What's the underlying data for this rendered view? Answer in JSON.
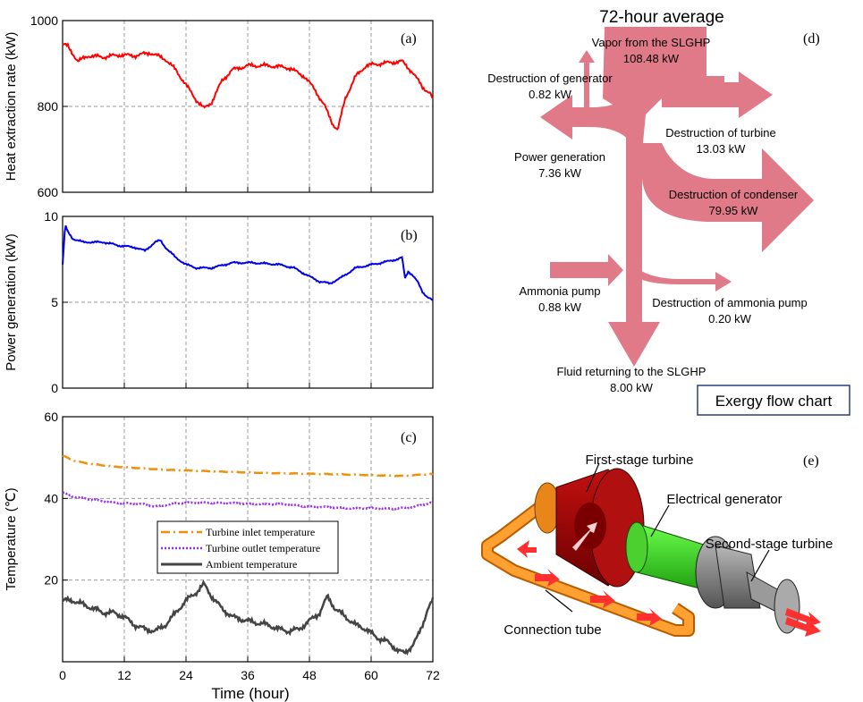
{
  "panels": {
    "a": {
      "label": "(a)",
      "ylabel": "Heat extraction rate (kW)",
      "ylim": [
        600,
        1000
      ],
      "yticks": [
        "600",
        "800",
        "1000"
      ]
    },
    "b": {
      "label": "(b)",
      "ylabel": "Power generation (kW)",
      "ylim": [
        0,
        10
      ],
      "yticks": [
        "0",
        "5",
        "10"
      ]
    },
    "c": {
      "label": "(c)",
      "ylabel": "Temperature (℃)",
      "ylim": [
        0,
        60
      ],
      "yticks": [
        "20",
        "40",
        "60"
      ],
      "xticks": [
        "0",
        "12",
        "24",
        "36",
        "48",
        "60",
        "72"
      ],
      "xlabel": "Time  (hour)",
      "legend": [
        "Turbine inlet temperature",
        "Turbine outlet temperature",
        "Ambient temperature"
      ]
    },
    "d": {
      "label": "(d)",
      "title": "72-hour average",
      "box_label": "Exergy flow chart",
      "flows": [
        {
          "name": "Vapor from the SLGHP",
          "value": "108.48 kW"
        },
        {
          "name": "Destruction of generator",
          "value": "0.82 kW"
        },
        {
          "name": "Destruction of turbine",
          "value": "13.03 kW"
        },
        {
          "name": "Power generation",
          "value": "7.36 kW"
        },
        {
          "name": "Destruction of condenser",
          "value": "79.95 kW"
        },
        {
          "name": "Ammonia pump",
          "value": "0.88 kW"
        },
        {
          "name": "Destruction of ammonia pump",
          "value": "0.20 kW"
        },
        {
          "name": "Fluid returning to the SLGHP",
          "value": "8.00 kW"
        }
      ]
    },
    "e": {
      "label": "(e)",
      "parts": [
        "First-stage turbine",
        "Electrical generator",
        "Second-stage turbine",
        "Connection tube"
      ]
    }
  },
  "colors": {
    "heat": "#ff0000",
    "power": "#0000ee",
    "inlet": "#f0900a",
    "outlet": "#9a2cf0",
    "ambient": "#444444",
    "sankey": "#e07a88"
  },
  "chart_data": [
    {
      "type": "line",
      "panel": "a",
      "ylabel": "Heat extraction rate (kW)",
      "ylim": [
        600,
        1000
      ],
      "xlim": [
        0,
        72
      ],
      "series": [
        {
          "values": [
            [
              0,
              945
            ],
            [
              1,
              940
            ],
            [
              3,
              905
            ],
            [
              5,
              918
            ],
            [
              8,
              915
            ],
            [
              11,
              920
            ],
            [
              14,
              918
            ],
            [
              17,
              925
            ],
            [
              20,
              910
            ],
            [
              22,
              885
            ],
            [
              24,
              850
            ],
            [
              26,
              815
            ],
            [
              27.5,
              795
            ],
            [
              29,
              810
            ],
            [
              31,
              860
            ],
            [
              33,
              885
            ],
            [
              36,
              895
            ],
            [
              40,
              895
            ],
            [
              44,
              890
            ],
            [
              47,
              870
            ],
            [
              49,
              840
            ],
            [
              51,
              800
            ],
            [
              52.5,
              760
            ],
            [
              53.5,
              745
            ],
            [
              55,
              820
            ],
            [
              57,
              870
            ],
            [
              59,
              895
            ],
            [
              62,
              900
            ],
            [
              66,
              905
            ],
            [
              68,
              880
            ],
            [
              70,
              845
            ],
            [
              71.5,
              830
            ],
            [
              72,
              815
            ]
          ]
        }
      ]
    },
    {
      "type": "line",
      "panel": "b",
      "ylabel": "Power generation (kW)",
      "ylim": [
        0,
        10
      ],
      "xlim": [
        0,
        72
      ],
      "series": [
        {
          "values": [
            [
              0,
              7.2
            ],
            [
              0.5,
              9.5
            ],
            [
              1,
              9.1
            ],
            [
              2,
              8.7
            ],
            [
              4,
              8.5
            ],
            [
              8,
              8.5
            ],
            [
              11,
              8.3
            ],
            [
              14,
              8.2
            ],
            [
              16,
              8.0
            ],
            [
              18,
              8.5
            ],
            [
              19,
              8.6
            ],
            [
              20,
              8.2
            ],
            [
              22,
              7.6
            ],
            [
              24,
              7.2
            ],
            [
              26,
              7.0
            ],
            [
              29,
              7.0
            ],
            [
              33,
              7.3
            ],
            [
              37,
              7.3
            ],
            [
              42,
              7.2
            ],
            [
              45,
              7.0
            ],
            [
              48,
              6.5
            ],
            [
              50,
              6.2
            ],
            [
              52,
              6.1
            ],
            [
              54,
              6.4
            ],
            [
              57,
              7.0
            ],
            [
              62,
              7.3
            ],
            [
              65,
              7.5
            ],
            [
              66,
              7.6
            ],
            [
              66.6,
              6.4
            ],
            [
              67.2,
              6.8
            ],
            [
              68,
              6.6
            ],
            [
              69,
              6.2
            ],
            [
              70,
              5.6
            ],
            [
              71,
              5.3
            ],
            [
              72,
              5.1
            ]
          ]
        }
      ]
    },
    {
      "type": "line",
      "panel": "c",
      "ylabel": "Temperature (℃)",
      "ylim": [
        0,
        60
      ],
      "xlim": [
        0,
        72
      ],
      "xlabel": "Time  (hour)",
      "series": [
        {
          "name": "Turbine inlet temperature",
          "values": [
            [
              0,
              50.5
            ],
            [
              2,
              49.3
            ],
            [
              5,
              48.5
            ],
            [
              10,
              47.8
            ],
            [
              20,
              47.0
            ],
            [
              30,
              46.6
            ],
            [
              40,
              46.2
            ],
            [
              50,
              46.0
            ],
            [
              60,
              45.7
            ],
            [
              66,
              45.5
            ],
            [
              72,
              46.0
            ]
          ]
        },
        {
          "name": "Turbine outlet temperature",
          "values": [
            [
              0,
              41.5
            ],
            [
              2,
              40.5
            ],
            [
              6,
              39.6
            ],
            [
              10,
              39.0
            ],
            [
              16,
              38.5
            ],
            [
              18,
              38.0
            ],
            [
              22,
              38.8
            ],
            [
              28,
              39.0
            ],
            [
              36,
              38.7
            ],
            [
              44,
              38.5
            ],
            [
              48,
              38.0
            ],
            [
              56,
              37.6
            ],
            [
              64,
              37.5
            ],
            [
              68,
              37.8
            ],
            [
              72,
              39.0
            ]
          ]
        },
        {
          "name": "Ambient temperature",
          "values": [
            [
              0,
              15
            ],
            [
              2,
              15
            ],
            [
              4,
              14
            ],
            [
              8,
              12
            ],
            [
              10,
              12
            ],
            [
              12,
              11
            ],
            [
              14,
              9
            ],
            [
              16,
              8
            ],
            [
              18,
              7.5
            ],
            [
              20,
              9
            ],
            [
              22,
              12
            ],
            [
              24,
              15
            ],
            [
              26,
              17
            ],
            [
              27.5,
              19
            ],
            [
              29,
              16
            ],
            [
              31,
              13
            ],
            [
              33,
              11
            ],
            [
              36,
              10
            ],
            [
              40,
              9
            ],
            [
              42,
              8
            ],
            [
              44,
              7.5
            ],
            [
              46,
              8
            ],
            [
              48,
              10
            ],
            [
              50,
              12
            ],
            [
              51.5,
              16
            ],
            [
              53,
              13
            ],
            [
              55,
              11
            ],
            [
              57,
              9
            ],
            [
              59,
              8
            ],
            [
              61,
              6
            ],
            [
              63,
              5
            ],
            [
              65,
              3
            ],
            [
              66.5,
              2
            ],
            [
              68,
              4
            ],
            [
              69,
              6
            ],
            [
              70,
              9
            ],
            [
              71,
              13
            ],
            [
              72,
              15
            ]
          ]
        }
      ]
    }
  ]
}
